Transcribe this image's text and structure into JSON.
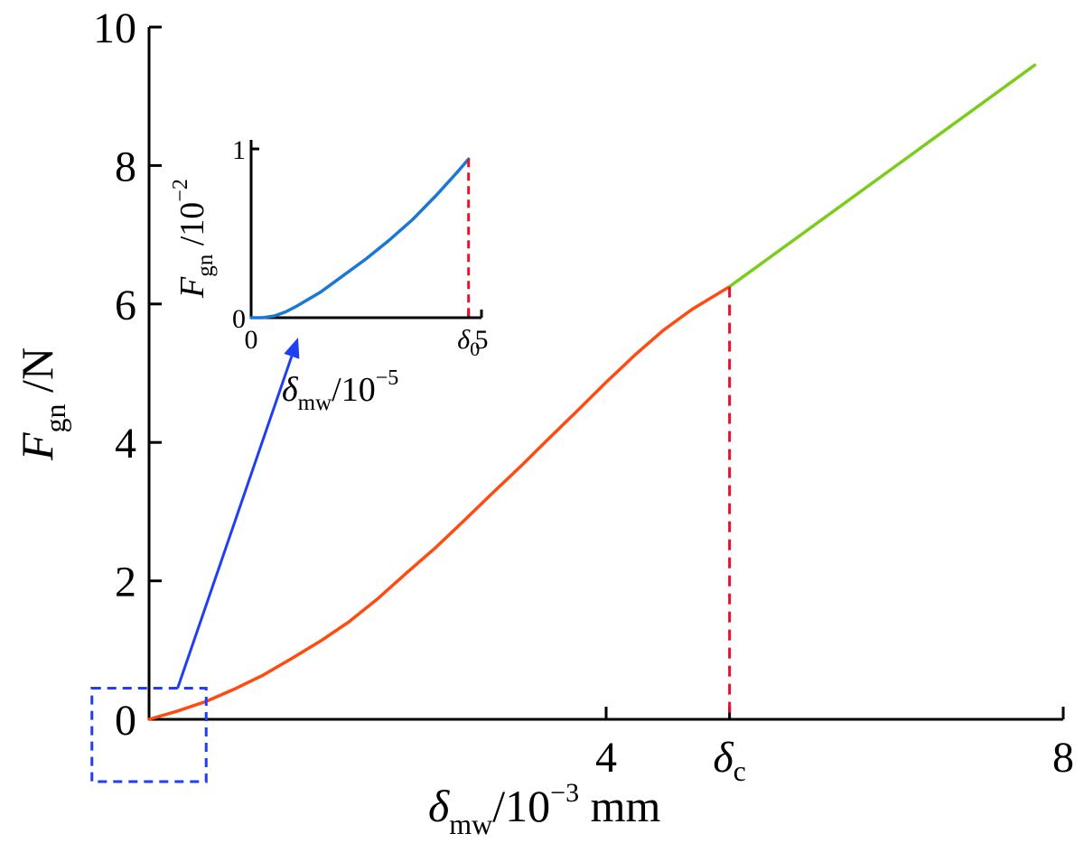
{
  "chart_data": [
    {
      "type": "line",
      "xlim": [
        0,
        8
      ],
      "ylim": [
        0,
        10
      ],
      "x_ticks": [
        {
          "value": 4,
          "label": "4"
        },
        {
          "value": 5.08,
          "label": "δc"
        },
        {
          "value": 8,
          "label": "8"
        }
      ],
      "y_ticks": [
        {
          "value": 0,
          "label": "0"
        },
        {
          "value": 2,
          "label": "2"
        },
        {
          "value": 4,
          "label": "4"
        },
        {
          "value": 6,
          "label": "6"
        },
        {
          "value": 8,
          "label": "8"
        },
        {
          "value": 10,
          "label": "10"
        }
      ],
      "xlabel": {
        "symbol": "δ",
        "sub": "mw",
        "rest": "/10",
        "sup": "−3",
        "unit": " mm"
      },
      "ylabel": {
        "symbol": "F",
        "sub": "gn",
        "rest": " /N"
      },
      "series": [
        {
          "color": "#ff4a10",
          "x": [
            0,
            0.25,
            0.5,
            0.75,
            1.0,
            1.25,
            1.5,
            1.75,
            2.0,
            2.25,
            2.5,
            2.75,
            3.0,
            3.25,
            3.5,
            3.75,
            4.0,
            4.25,
            4.5,
            4.75,
            5.08
          ],
          "y": [
            0,
            0.12,
            0.26,
            0.44,
            0.64,
            0.88,
            1.13,
            1.41,
            1.74,
            2.11,
            2.47,
            2.86,
            3.26,
            3.65,
            4.06,
            4.46,
            4.87,
            5.26,
            5.62,
            5.92,
            6.25
          ]
        },
        {
          "color": "#7ccc1c",
          "x": [
            5.08,
            7.75
          ],
          "y": [
            6.25,
            9.45
          ]
        }
      ],
      "critical_line": {
        "x": 5.08,
        "y": 6.25,
        "color": "#e8112d"
      },
      "highlight_box": {
        "x": [
          -0.5,
          0.5
        ],
        "y": [
          -0.9,
          0.45
        ],
        "color": "#1f3ff2"
      },
      "arrow": {
        "from": [
          0.25,
          0.45
        ],
        "to_inset": true,
        "color": "#1f3ff2"
      }
    },
    {
      "type": "line",
      "xlim": [
        0,
        5
      ],
      "ylim": [
        0,
        1
      ],
      "x_ticks": [
        {
          "value": 0,
          "label": "0"
        },
        {
          "value": 4.72,
          "label": "δ0"
        },
        {
          "value": 5,
          "label": "5"
        }
      ],
      "y_ticks": [
        {
          "value": 0,
          "label": "0"
        },
        {
          "value": 1,
          "label": "1"
        }
      ],
      "xlabel": {
        "symbol": "δ",
        "sub": "mw",
        "rest": "/10",
        "sup": "−5"
      },
      "ylabel": {
        "symbol": "F",
        "sub": "gn",
        "rest": " /10",
        "sup": "−2"
      },
      "series": [
        {
          "color": "#1a78d4",
          "x": [
            0,
            0.25,
            0.5,
            0.75,
            1.0,
            1.5,
            2.0,
            2.5,
            3.0,
            3.5,
            4.0,
            4.5,
            4.72
          ],
          "y": [
            0,
            0.0,
            0.01,
            0.035,
            0.07,
            0.15,
            0.25,
            0.35,
            0.46,
            0.58,
            0.72,
            0.87,
            0.94
          ]
        }
      ],
      "critical_line": {
        "x": 4.72,
        "y": 0.94,
        "color": "#e8112d"
      }
    }
  ]
}
